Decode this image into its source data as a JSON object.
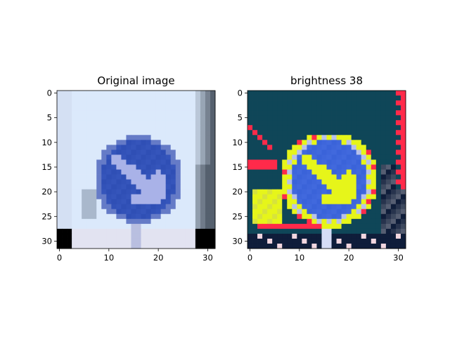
{
  "chart_data": [
    {
      "type": "heatmap",
      "title": "Original image",
      "x_ticks": [
        0,
        10,
        20,
        30
      ],
      "y_ticks": [
        0,
        5,
        10,
        15,
        20,
        25,
        30
      ],
      "xlim": [
        -0.5,
        31.5
      ],
      "ylim": [
        31.5,
        -0.5
      ],
      "image_size": [
        32,
        32
      ],
      "content": "32x32 photo of blue circular traffic sign with white arrow pointing down-right, light blue sky background"
    },
    {
      "type": "heatmap",
      "title": "brightness 38",
      "x_ticks": [
        0,
        10,
        20,
        30
      ],
      "y_ticks": [
        0,
        5,
        10,
        15,
        20,
        25,
        30
      ],
      "xlim": [
        -0.5,
        31.5
      ],
      "ylim": [
        31.5,
        -0.5
      ],
      "image_size": [
        32,
        32
      ],
      "content": "same sign with brightness wrap-around: dark teal background, yellow/red saturated edges"
    }
  ],
  "colors": {
    "sky": "#dbe9fb",
    "sign_blue": "#2f4fb5",
    "arrow": "#a9b2e8",
    "teal_bg": "#0f4658",
    "red": "#ff2a4a",
    "yellow": "#e6f51a",
    "bright_blue": "#3a63d9",
    "dark_navy": "#0f1d3a"
  }
}
